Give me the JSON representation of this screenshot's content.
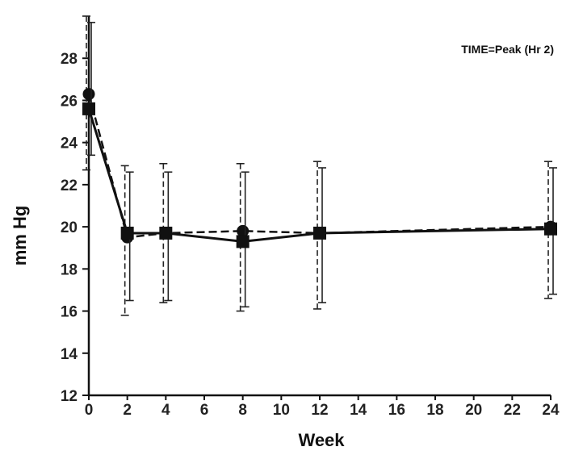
{
  "chart_data": {
    "type": "line",
    "title": "",
    "annotation": "TIME=Peak (Hr 2)",
    "xlabel": "Week",
    "ylabel": "mm Hg",
    "xlim": [
      0,
      24
    ],
    "ylim": [
      12,
      30
    ],
    "x_ticks": [
      "0",
      "2",
      "4",
      "6",
      "8",
      "10",
      "12",
      "14",
      "16",
      "18",
      "20",
      "22",
      "24"
    ],
    "y_ticks": [
      "12",
      "14",
      "16",
      "18",
      "20",
      "22",
      "24",
      "26",
      "28"
    ],
    "grid": false,
    "series": [
      {
        "marker": "circle",
        "line_style": "dashed",
        "x": [
          0,
          2,
          4,
          8,
          12,
          24
        ],
        "y": [
          26.3,
          19.5,
          19.7,
          19.8,
          19.7,
          20.0
        ],
        "err_low": [
          22.7,
          15.8,
          16.4,
          16.0,
          16.1,
          16.6
        ],
        "err_high": [
          30.0,
          22.9,
          23.0,
          23.0,
          23.1,
          23.1
        ]
      },
      {
        "marker": "square",
        "line_style": "solid",
        "x": [
          0,
          2,
          4,
          8,
          12,
          24
        ],
        "y": [
          25.6,
          19.7,
          19.7,
          19.3,
          19.7,
          19.9
        ],
        "err_low": [
          23.4,
          16.5,
          16.5,
          16.2,
          16.4,
          16.8
        ],
        "err_high": [
          29.7,
          22.6,
          22.6,
          22.6,
          22.8,
          22.8
        ]
      }
    ]
  }
}
